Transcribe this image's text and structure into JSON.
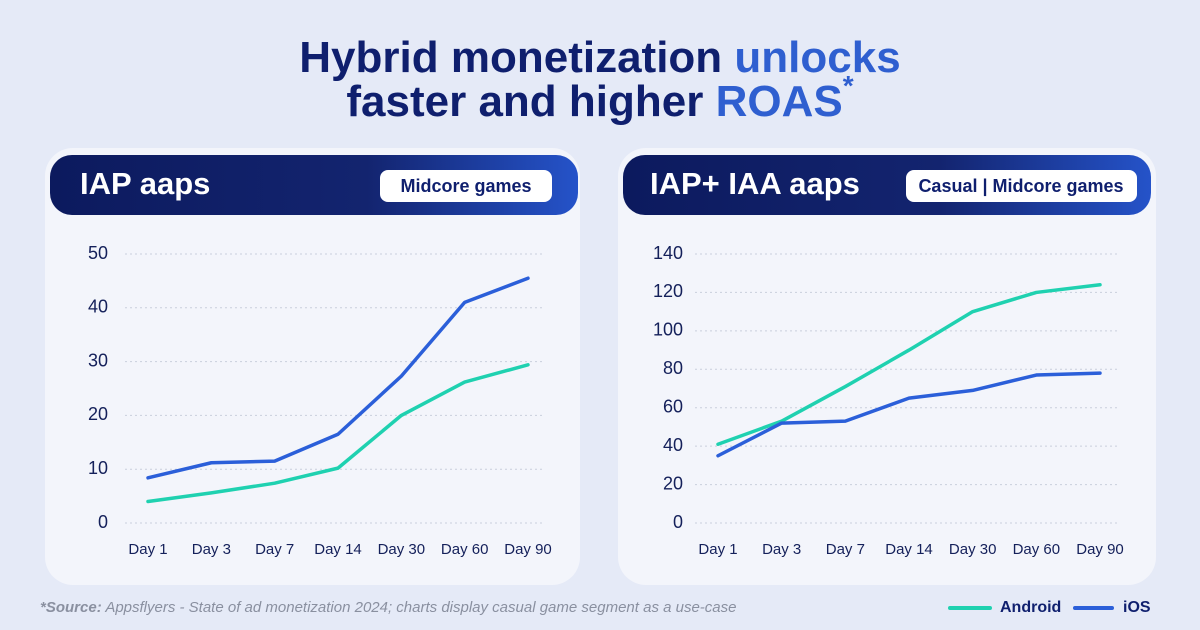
{
  "header": {
    "title_parts": [
      {
        "text": "Hybrid monetization",
        "color": "#0f1f6e"
      },
      {
        "text": "unlocks",
        "color": "#2f5fd0"
      },
      {
        "text": "faster and higher",
        "color": "#0f1f6e"
      },
      {
        "text": "ROAS",
        "color": "#2f5fd0"
      },
      {
        "text": "*",
        "color": "#2f5fd0"
      }
    ]
  },
  "chart_data": [
    {
      "type": "line",
      "title": "IAP aaps",
      "badge": "Midcore games",
      "categories": [
        "Day 1",
        "Day 3",
        "Day 7",
        "Day 14",
        "Day 30",
        "Day 60",
        "Day 90"
      ],
      "series": [
        {
          "name": "Android",
          "color": "#1fd1b0",
          "values": [
            4,
            5.6,
            7.4,
            10.2,
            20,
            26.2,
            29.4
          ]
        },
        {
          "name": "iOS",
          "color": "#2b5fd9",
          "values": [
            8.4,
            11.2,
            11.5,
            16.5,
            27.3,
            41,
            45.5
          ]
        }
      ],
      "ylim": [
        0,
        50
      ],
      "yticks": [
        0,
        10,
        20,
        30,
        40,
        50
      ],
      "grid": true
    },
    {
      "type": "line",
      "title": "IAP+ IAA aaps",
      "badge": "Casual | Midcore games",
      "categories": [
        "Day 1",
        "Day 3",
        "Day 7",
        "Day 14",
        "Day 30",
        "Day 60",
        "Day 90"
      ],
      "series": [
        {
          "color": "#1fd1b0",
          "values": [
            41,
            53,
            71,
            90,
            110,
            120,
            124
          ]
        },
        {
          "color": "#2b5fd9",
          "values": [
            35,
            52,
            53,
            65,
            69,
            77,
            78
          ]
        }
      ],
      "ylim": [
        0,
        140
      ],
      "yticks": [
        0,
        20,
        40,
        60,
        80,
        100,
        120,
        140
      ],
      "grid": true
    }
  ],
  "footer": {
    "source_label": "*Source:",
    "source_text": "Appsflyers - State of ad monetization 2024; charts display casual game segment as a use-case"
  }
}
